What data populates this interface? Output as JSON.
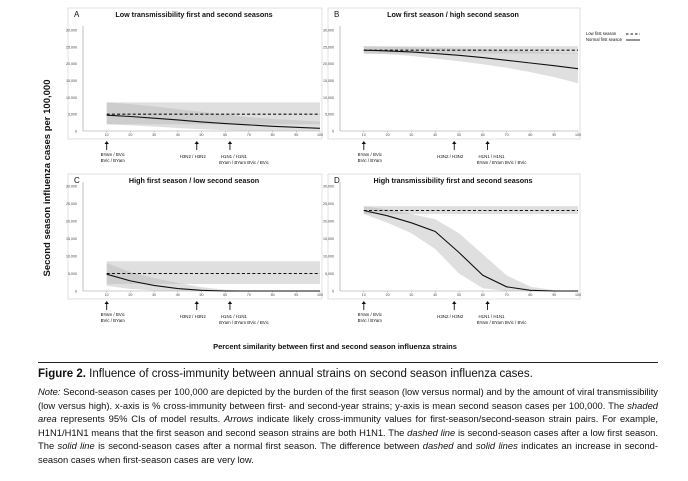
{
  "figure": {
    "y_axis_label": "Second season influenza cases per 100,000",
    "x_axis_label": "Percent similarity between first and second season influenza strains",
    "legend": {
      "low": "Low first season",
      "normal": "Normal first season"
    },
    "arrow_labels": {
      "a": [
        "BYam / BVic",
        "BVic / BYam"
      ],
      "b": [
        "H3N2 / H3N2"
      ],
      "c": [
        "H1N1 / H1N1",
        "BYam / BYam   BVic / BVic"
      ]
    }
  },
  "chart_data": [
    {
      "type": "line",
      "letter": "A",
      "title": "Low transmissibility first and second seasons",
      "x": [
        10,
        20,
        30,
        40,
        50,
        60,
        70,
        80,
        90,
        100
      ],
      "xlim": [
        0,
        100
      ],
      "ylim": [
        0,
        30000
      ],
      "yticks": [
        "0",
        "5,000",
        "10,000",
        "15,000",
        "20,000",
        "25,000",
        "30,000"
      ],
      "xticks": [
        "10",
        "20",
        "30",
        "40",
        "50",
        "60",
        "70",
        "80",
        "90",
        "100"
      ],
      "arrows_x": [
        10,
        48,
        62
      ],
      "series": [
        {
          "name": "Low first season",
          "style": "dashed",
          "values": [
            5000,
            5000,
            5000,
            5000,
            5000,
            5000,
            5000,
            5000,
            5000,
            5000
          ]
        },
        {
          "name": "Normal first season",
          "style": "solid",
          "values": [
            4700,
            4300,
            3800,
            3300,
            2700,
            2200,
            1800,
            1400,
            1100,
            800
          ]
        }
      ],
      "bands": [
        {
          "lower": [
            2000,
            2000,
            2000,
            2000,
            2000,
            2000,
            2000,
            2000,
            2000,
            2000
          ],
          "upper": [
            8500,
            8500,
            8500,
            8500,
            8500,
            8500,
            8500,
            8500,
            8500,
            8500
          ]
        },
        {
          "lower": [
            2000,
            1700,
            1300,
            900,
            500,
            200,
            0,
            0,
            0,
            0
          ],
          "upper": [
            8500,
            8000,
            7300,
            6500,
            5700,
            4900,
            4100,
            3600,
            3200,
            2800
          ]
        }
      ]
    },
    {
      "type": "line",
      "letter": "B",
      "title": "Low first season / high second season",
      "x": [
        10,
        20,
        30,
        40,
        50,
        60,
        70,
        80,
        90,
        100
      ],
      "xlim": [
        0,
        100
      ],
      "ylim": [
        0,
        30000
      ],
      "yticks": [
        "0",
        "5,000",
        "10,000",
        "15,000",
        "20,000",
        "25,000",
        "30,000"
      ],
      "xticks": [
        "10",
        "20",
        "30",
        "40",
        "50",
        "60",
        "70",
        "80",
        "90",
        "100"
      ],
      "arrows_x": [
        10,
        48,
        62
      ],
      "series": [
        {
          "name": "Low first season",
          "style": "dashed",
          "values": [
            24000,
            24000,
            24000,
            24000,
            24000,
            24000,
            24000,
            24000,
            24000,
            24000
          ]
        },
        {
          "name": "Normal first season",
          "style": "solid",
          "values": [
            24000,
            23800,
            23500,
            23000,
            22500,
            21800,
            21000,
            20200,
            19400,
            18500
          ]
        }
      ],
      "bands": [
        {
          "lower": [
            23000,
            23000,
            23000,
            23000,
            23000,
            23000,
            23000,
            23000,
            23000,
            23000
          ],
          "upper": [
            25200,
            25200,
            25200,
            25200,
            25200,
            25200,
            25200,
            25200,
            25200,
            25200
          ]
        },
        {
          "lower": [
            23000,
            22800,
            22300,
            21500,
            20700,
            19800,
            18800,
            17500,
            16000,
            14200
          ],
          "upper": [
            25200,
            25000,
            24900,
            24700,
            24500,
            24300,
            24000,
            23700,
            23400,
            23100
          ]
        }
      ]
    },
    {
      "type": "line",
      "letter": "C",
      "title": "High first season / low second season",
      "x": [
        10,
        20,
        30,
        40,
        50,
        60,
        70,
        80,
        90,
        100
      ],
      "xlim": [
        0,
        100
      ],
      "ylim": [
        0,
        30000
      ],
      "yticks": [
        "0",
        "5,000",
        "10,000",
        "15,000",
        "20,000",
        "25,000",
        "30,000"
      ],
      "xticks": [
        "10",
        "20",
        "30",
        "40",
        "50",
        "60",
        "70",
        "80",
        "90",
        "100"
      ],
      "arrows_x": [
        10,
        48,
        62
      ],
      "series": [
        {
          "name": "Low first season",
          "style": "dashed",
          "values": [
            5000,
            5000,
            5000,
            5000,
            5000,
            5000,
            5000,
            5000,
            5000,
            5000
          ]
        },
        {
          "name": "Normal first season",
          "style": "solid",
          "values": [
            4800,
            2900,
            1600,
            700,
            200,
            0,
            0,
            0,
            0,
            0
          ]
        }
      ],
      "bands": [
        {
          "lower": [
            2000,
            2000,
            2000,
            2000,
            2000,
            2000,
            2000,
            2000,
            2000,
            2000
          ],
          "upper": [
            8500,
            8500,
            8500,
            8500,
            8500,
            8500,
            8500,
            8500,
            8500,
            8500
          ]
        },
        {
          "lower": [
            1500,
            600,
            100,
            0,
            0,
            0,
            0,
            0,
            0,
            0
          ],
          "upper": [
            8000,
            5400,
            3700,
            2300,
            1100,
            400,
            0,
            0,
            0,
            0
          ]
        }
      ]
    },
    {
      "type": "line",
      "letter": "D",
      "title": "High transmissibility first and second seasons",
      "x": [
        10,
        20,
        30,
        40,
        50,
        60,
        70,
        80,
        90,
        100
      ],
      "xlim": [
        0,
        100
      ],
      "ylim": [
        0,
        30000
      ],
      "yticks": [
        "0",
        "5,000",
        "10,000",
        "15,000",
        "20,000",
        "25,000",
        "30,000"
      ],
      "xticks": [
        "10",
        "20",
        "30",
        "40",
        "50",
        "60",
        "70",
        "80",
        "90",
        "100"
      ],
      "arrows_x": [
        10,
        48,
        62
      ],
      "series": [
        {
          "name": "Low first season",
          "style": "dashed",
          "values": [
            23000,
            23000,
            23000,
            23000,
            23000,
            23000,
            23000,
            23000,
            23000,
            23000
          ]
        },
        {
          "name": "Normal first season",
          "style": "solid",
          "values": [
            23000,
            21500,
            19500,
            17000,
            11000,
            4500,
            1200,
            200,
            0,
            0
          ]
        }
      ],
      "bands": [
        {
          "lower": [
            22000,
            22000,
            22000,
            22000,
            22000,
            22000,
            22000,
            22000,
            22000,
            22000
          ],
          "upper": [
            24200,
            24200,
            24200,
            24200,
            24200,
            24200,
            24200,
            24200,
            24200,
            24200
          ]
        },
        {
          "lower": [
            22000,
            19500,
            16500,
            12000,
            5000,
            800,
            0,
            0,
            0,
            0
          ],
          "upper": [
            24200,
            23300,
            22000,
            20500,
            16500,
            10500,
            4500,
            1200,
            200,
            0
          ]
        }
      ]
    }
  ],
  "caption": {
    "title_bold": "Figure 2.",
    "title_text": "Influence of cross-immunity between annual strains on second season influenza cases.",
    "note_parts": [
      {
        "s": "i",
        "t": "Note:"
      },
      {
        "s": "n",
        "t": " Second-season cases per 100,000 are depicted by the burden of the first season (low versus normal) and by the amount of viral transmissibility (low versus high). x-axis is % cross-immunity between first- and second-year strains; y-axis is mean second season cases per 100,000. The "
      },
      {
        "s": "i",
        "t": "shaded area"
      },
      {
        "s": "n",
        "t": " represents 95% CIs of model results. "
      },
      {
        "s": "i",
        "t": "Arrows"
      },
      {
        "s": "n",
        "t": " indicate likely cross-immunity values for first-season/second-season strain pairs. For example, H1N1/H1N1 means that the first season and second season strains are both H1N1. The "
      },
      {
        "s": "i",
        "t": "dashed line"
      },
      {
        "s": "n",
        "t": " is second-season cases after a low first season. The "
      },
      {
        "s": "i",
        "t": "solid line"
      },
      {
        "s": "n",
        "t": " is second-season cases after a normal first season. The difference between "
      },
      {
        "s": "i",
        "t": "dashed"
      },
      {
        "s": "n",
        "t": " and "
      },
      {
        "s": "i",
        "t": "solid lines"
      },
      {
        "s": "n",
        "t": " indicates an increase in second-season cases when first-season cases are very low."
      }
    ]
  }
}
